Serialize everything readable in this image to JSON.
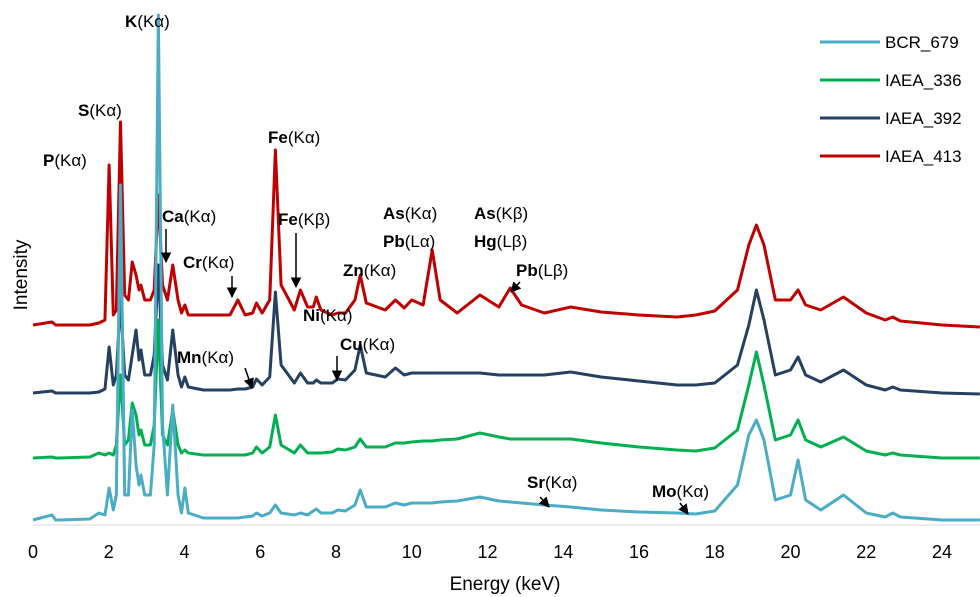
{
  "chart_data": {
    "type": "line",
    "xlabel": "Energy (keV)",
    "ylabel": "Intensity",
    "x": [
      0,
      0.5,
      0.6,
      0.7,
      1.5,
      1.74,
      1.9,
      2.01,
      2.12,
      2.2,
      2.31,
      2.42,
      2.52,
      2.62,
      2.72,
      2.8,
      2.85,
      2.95,
      3.1,
      3.2,
      3.31,
      3.42,
      3.55,
      3.69,
      3.83,
      3.92,
      4.01,
      4.1,
      4.5,
      5.2,
      5.41,
      5.6,
      5.8,
      5.9,
      6.05,
      6.25,
      6.4,
      6.55,
      6.9,
      7.06,
      7.25,
      7.4,
      7.48,
      7.6,
      7.9,
      8.05,
      8.25,
      8.5,
      8.64,
      8.8,
      9.3,
      9.57,
      9.8,
      10.0,
      10.3,
      10.54,
      10.75,
      11.2,
      11.8,
      12.3,
      12.6,
      12.9,
      13.5,
      14.2,
      15,
      16,
      17,
      17.5,
      18,
      18.6,
      18.9,
      19.1,
      19.3,
      19.6,
      20.0,
      20.2,
      20.4,
      20.8,
      21.4,
      22.0,
      22.5,
      22.7,
      22.9,
      24,
      25
    ],
    "series": [
      {
        "name": "BCR_679",
        "color": "#4bacc6",
        "values": [
          5,
          10,
          5,
          5,
          6,
          12,
          10,
          37,
          15,
          30,
          340,
          30,
          30,
          115,
          60,
          40,
          50,
          30,
          30,
          80,
          510,
          100,
          30,
          120,
          30,
          12,
          37,
          12,
          7,
          7,
          7,
          8,
          9,
          12,
          9,
          12,
          20,
          12,
          10,
          12,
          10,
          14,
          16,
          12,
          12,
          15,
          14,
          20,
          35,
          18,
          18,
          22,
          20,
          22,
          22,
          22,
          23,
          24,
          28,
          24,
          23,
          22,
          20,
          18,
          15,
          13,
          12,
          11,
          14,
          40,
          90,
          105,
          85,
          25,
          30,
          65,
          25,
          15,
          30,
          12,
          8,
          12,
          8,
          5,
          5
        ]
      },
      {
        "name": "IAEA_336",
        "color": "#00b050",
        "values": [
          67,
          68,
          67,
          67,
          68,
          72,
          70,
          72,
          70,
          80,
          150,
          80,
          85,
          122,
          110,
          90,
          95,
          80,
          80,
          100,
          205,
          90,
          80,
          115,
          80,
          72,
          75,
          72,
          70,
          70,
          70,
          70,
          72,
          78,
          72,
          78,
          110,
          80,
          72,
          80,
          72,
          72,
          72,
          72,
          73,
          76,
          75,
          78,
          86,
          78,
          78,
          82,
          82,
          83,
          84,
          84,
          85,
          86,
          92,
          88,
          86,
          86,
          86,
          86,
          82,
          78,
          75,
          74,
          77,
          95,
          140,
          173,
          140,
          85,
          90,
          105,
          85,
          78,
          88,
          74,
          70,
          72,
          70,
          67,
          67
        ]
      },
      {
        "name": "IAEA_392",
        "color": "#254061",
        "values": [
          132,
          134,
          132,
          132,
          132,
          133,
          136,
          178,
          140,
          150,
          225,
          150,
          145,
          170,
          195,
          165,
          175,
          150,
          150,
          170,
          260,
          160,
          145,
          195,
          150,
          138,
          148,
          138,
          135,
          135,
          136,
          136,
          138,
          146,
          140,
          148,
          233,
          160,
          142,
          152,
          142,
          142,
          145,
          142,
          142,
          146,
          145,
          155,
          180,
          152,
          148,
          157,
          150,
          152,
          152,
          152,
          152,
          152,
          152,
          150,
          150,
          150,
          150,
          153,
          148,
          144,
          140,
          140,
          142,
          160,
          200,
          235,
          205,
          150,
          155,
          168,
          150,
          143,
          155,
          140,
          135,
          138,
          135,
          132,
          131
        ]
      },
      {
        "name": "IAEA_413",
        "color": "#c00000",
        "values": [
          200,
          203,
          200,
          200,
          200,
          202,
          205,
          360,
          210,
          215,
          403,
          230,
          225,
          263,
          250,
          235,
          240,
          225,
          225,
          235,
          330,
          240,
          225,
          260,
          225,
          212,
          220,
          210,
          210,
          210,
          225,
          210,
          212,
          222,
          212,
          225,
          375,
          240,
          215,
          235,
          218,
          218,
          228,
          215,
          210,
          212,
          212,
          225,
          250,
          222,
          215,
          225,
          217,
          225,
          220,
          275,
          225,
          212,
          230,
          218,
          237,
          220,
          212,
          218,
          213,
          210,
          208,
          210,
          214,
          235,
          280,
          300,
          280,
          225,
          225,
          235,
          220,
          215,
          228,
          212,
          205,
          208,
          204,
          200,
          198
        ]
      }
    ],
    "xlim": [
      0,
      25
    ],
    "xticks": [
      0,
      2,
      4,
      6,
      8,
      10,
      12,
      14,
      16,
      18,
      20,
      22,
      24
    ],
    "ylim": [
      0,
      510
    ],
    "legend": "upper right",
    "annotations": [
      "K(Kα)",
      "S(Kα)",
      "P(Kα)",
      "Fe(Kα)",
      "Ca(Kα)",
      "Fe(Kβ)",
      "Cr(Kα)",
      "As(Kα)",
      "Pb(Lα)",
      "As(Kβ)",
      "Hg(Lβ)",
      "Zn(Kα)",
      "Pb(Lβ)",
      "Ni(Kα)",
      "Cu(Kα)",
      "Mn(Kα)",
      "Sr(Kα)",
      "Mo(Kα)"
    ]
  }
}
